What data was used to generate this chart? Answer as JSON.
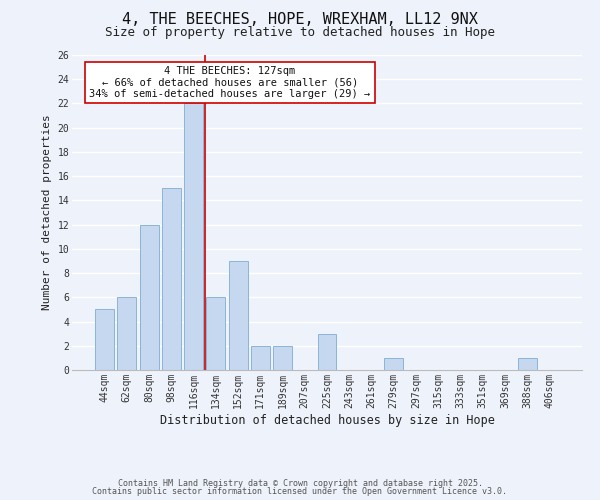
{
  "title": "4, THE BEECHES, HOPE, WREXHAM, LL12 9NX",
  "subtitle": "Size of property relative to detached houses in Hope",
  "xlabel": "Distribution of detached houses by size in Hope",
  "ylabel": "Number of detached properties",
  "bar_color": "#c5d8f0",
  "bar_edge_color": "#8ab4d8",
  "background_color": "#eef2fb",
  "grid_color": "#ffffff",
  "categories": [
    "44sqm",
    "62sqm",
    "80sqm",
    "98sqm",
    "116sqm",
    "134sqm",
    "152sqm",
    "171sqm",
    "189sqm",
    "207sqm",
    "225sqm",
    "243sqm",
    "261sqm",
    "279sqm",
    "297sqm",
    "315sqm",
    "333sqm",
    "351sqm",
    "369sqm",
    "388sqm",
    "406sqm"
  ],
  "values": [
    5,
    6,
    12,
    15,
    22,
    6,
    9,
    2,
    2,
    0,
    3,
    0,
    0,
    1,
    0,
    0,
    0,
    0,
    0,
    1,
    0
  ],
  "ylim": [
    0,
    26
  ],
  "yticks": [
    0,
    2,
    4,
    6,
    8,
    10,
    12,
    14,
    16,
    18,
    20,
    22,
    24,
    26
  ],
  "vline_x": 4.5,
  "vline_color": "#cc0000",
  "annotation_line1": "4 THE BEECHES: 127sqm",
  "annotation_line2": "← 66% of detached houses are smaller (56)",
  "annotation_line3": "34% of semi-detached houses are larger (29) →",
  "annotation_box_color": "#ffffff",
  "annotation_box_edge": "#cc0000",
  "footer_line1": "Contains HM Land Registry data © Crown copyright and database right 2025.",
  "footer_line2": "Contains public sector information licensed under the Open Government Licence v3.0.",
  "title_fontsize": 11,
  "subtitle_fontsize": 9,
  "annotation_fontsize": 7.5,
  "footer_fontsize": 6,
  "tick_fontsize": 7,
  "axis_label_fontsize": 8.5,
  "ylabel_fontsize": 8
}
